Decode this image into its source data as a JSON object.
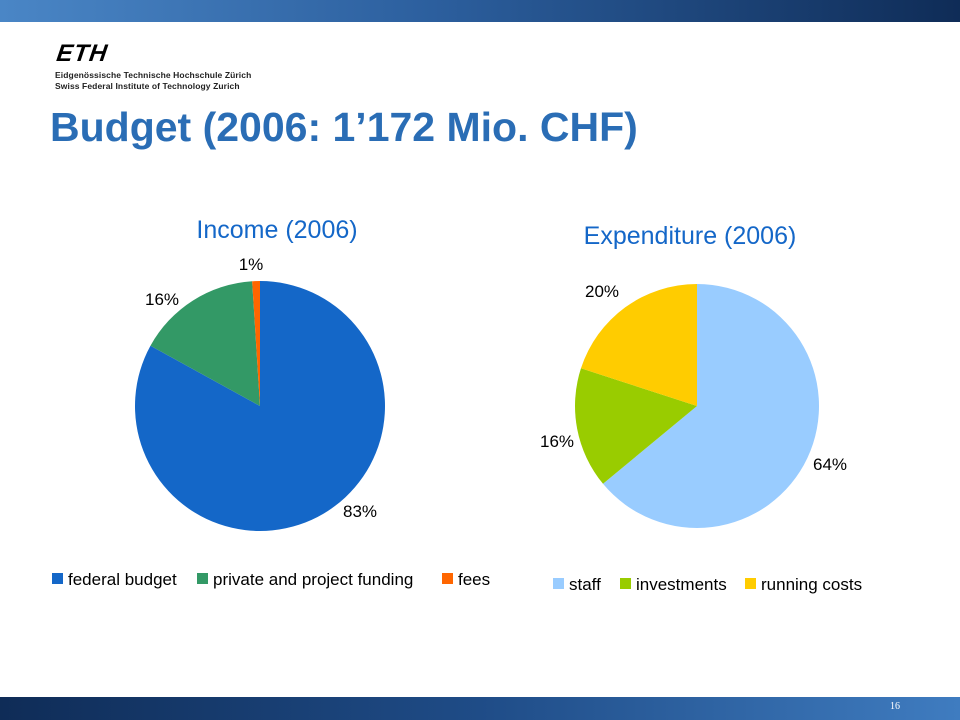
{
  "slide": {
    "title": "Budget (2006: 1’172 Mio. CHF)",
    "page_number": "16"
  },
  "logo": {
    "wordmark": "ETH",
    "line1": "Eidgenössische Technische Hochschule Zürich",
    "line2": "Swiss Federal Institute of Technology Zurich"
  },
  "colors": {
    "title": "#2a6db5",
    "federal_budget": "#1467c8",
    "private_funding": "#339966",
    "fees": "#ff6600",
    "staff": "#99ccff",
    "investments": "#99cc00",
    "running_costs": "#ffcc00"
  },
  "chart_data": [
    {
      "type": "pie",
      "title": "Income (2006)",
      "categories": [
        "federal budget",
        "private and project funding",
        "fees"
      ],
      "values": [
        83,
        16,
        1
      ],
      "data_labels": [
        "83%",
        "16%",
        "1%"
      ],
      "colors": [
        "#1467c8",
        "#339966",
        "#ff6600"
      ],
      "legend_position": "bottom"
    },
    {
      "type": "pie",
      "title": "Expenditure (2006)",
      "categories": [
        "staff",
        "investments",
        "running costs"
      ],
      "values": [
        64,
        16,
        20
      ],
      "data_labels": [
        "64%",
        "16%",
        "20%"
      ],
      "colors": [
        "#99ccff",
        "#99cc00",
        "#ffcc00"
      ],
      "legend_position": "bottom"
    }
  ]
}
